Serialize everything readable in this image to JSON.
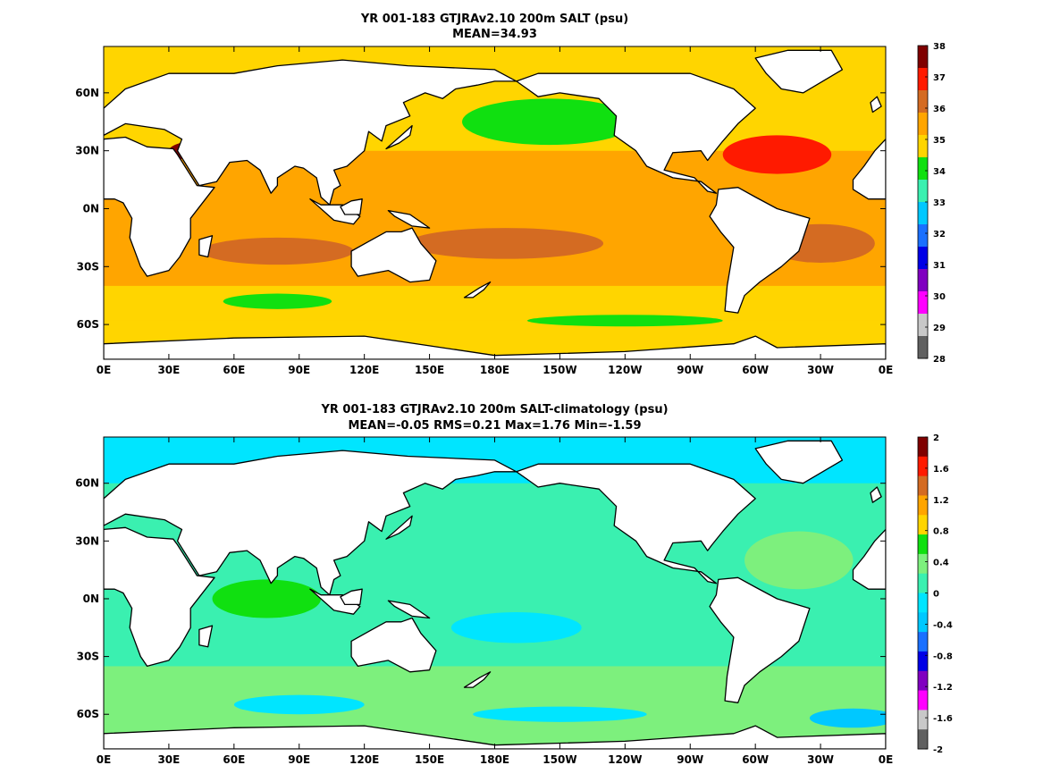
{
  "chart_data": [
    {
      "type": "heatmap",
      "title": "YR 001-183 GTJRAv2.10 200m SALT (psu)",
      "subtitle": "MEAN=34.93",
      "xticks": [
        "0E",
        "30E",
        "60E",
        "90E",
        "120E",
        "150E",
        "180E",
        "150W",
        "120W",
        "90W",
        "60W",
        "30W",
        "0E"
      ],
      "yticks": [
        "60N",
        "30N",
        "0N",
        "30S",
        "60S"
      ],
      "xlim_lon": [
        0,
        360
      ],
      "ylim_lat": [
        -78,
        84
      ],
      "colorbar": {
        "ticks": [
          "38",
          "37",
          "36",
          "35",
          "34",
          "33",
          "32",
          "31",
          "30",
          "29",
          "28"
        ],
        "colors": [
          "#7f0000",
          "#ff1a00",
          "#d46b22",
          "#ffa500",
          "#ffd500",
          "#10e010",
          "#3af0b0",
          "#00c8ff",
          "#1a70ff",
          "#0000e6",
          "#8000c0",
          "#ff00ff",
          "#c8c8c8",
          "#606060"
        ]
      },
      "fields": {
        "background": "#ffd500",
        "bands": [
          {
            "lat": [
              -78,
              -58
            ],
            "color": "#ffd500"
          },
          {
            "lat": [
              -58,
              -40
            ],
            "color": "#ffd500"
          },
          {
            "lat": [
              -40,
              30
            ],
            "color": "#ffa500"
          },
          {
            "lat": [
              30,
              62
            ],
            "color": "#ffd500"
          },
          {
            "lat": [
              62,
              84
            ],
            "color": "#ffd500"
          }
        ],
        "blobs": [
          {
            "lon": 185,
            "lat": -18,
            "rx": 45,
            "ry": 8,
            "color": "#d46b22"
          },
          {
            "lon": 80,
            "lat": -22,
            "rx": 35,
            "ry": 7,
            "color": "#d46b22"
          },
          {
            "lon": 330,
            "lat": -18,
            "rx": 25,
            "ry": 10,
            "color": "#d46b22"
          },
          {
            "lon": 310,
            "lat": 28,
            "rx": 25,
            "ry": 10,
            "color": "#ff1a00"
          },
          {
            "lon": 205,
            "lat": 45,
            "rx": 40,
            "ry": 12,
            "color": "#10e010"
          },
          {
            "lon": 80,
            "lat": -48,
            "rx": 25,
            "ry": 4,
            "color": "#10e010"
          },
          {
            "lon": 240,
            "lat": -58,
            "rx": 45,
            "ry": 3,
            "color": "#10e010"
          },
          {
            "lon": 50,
            "lat": 30,
            "rx": 20,
            "ry": 6,
            "color": "#7f0000"
          }
        ]
      }
    },
    {
      "type": "heatmap",
      "title": "YR 001-183 GTJRAv2.10 200m SALT-climatology (psu)",
      "subtitle": "MEAN=-0.05   RMS=0.21   Max=1.76   Min=-1.59",
      "xticks": [
        "0E",
        "30E",
        "60E",
        "90E",
        "120E",
        "150E",
        "180E",
        "150W",
        "120W",
        "90W",
        "60W",
        "30W",
        "0E"
      ],
      "yticks": [
        "60N",
        "30N",
        "0N",
        "30S",
        "60S"
      ],
      "xlim_lon": [
        0,
        360
      ],
      "ylim_lat": [
        -78,
        84
      ],
      "colorbar": {
        "ticks": [
          "2",
          "1.6",
          "1.2",
          "0.8",
          "0.4",
          "0",
          "-0.4",
          "-0.8",
          "-1.2",
          "-1.6",
          "-2"
        ],
        "colors": [
          "#7f0000",
          "#ff1a00",
          "#d46b22",
          "#ffa500",
          "#ffd500",
          "#10e010",
          "#7df07d",
          "#3af0b0",
          "#00e5ff",
          "#00c8ff",
          "#1a70ff",
          "#0000e6",
          "#8000c0",
          "#ff00ff",
          "#c8c8c8",
          "#606060"
        ]
      },
      "fields": {
        "background": "#3af0b0",
        "bands": [
          {
            "lat": [
              -78,
              -35
            ],
            "color": "#7df07d"
          },
          {
            "lat": [
              -35,
              60
            ],
            "color": "#3af0b0"
          },
          {
            "lat": [
              60,
              84
            ],
            "color": "#00e5ff"
          }
        ],
        "blobs": [
          {
            "lon": 190,
            "lat": -15,
            "rx": 30,
            "ry": 8,
            "color": "#00e5ff"
          },
          {
            "lon": 75,
            "lat": 0,
            "rx": 25,
            "ry": 10,
            "color": "#10e010"
          },
          {
            "lon": 320,
            "lat": 20,
            "rx": 25,
            "ry": 15,
            "color": "#7df07d"
          },
          {
            "lon": 90,
            "lat": -55,
            "rx": 30,
            "ry": 5,
            "color": "#00e5ff"
          },
          {
            "lon": 210,
            "lat": -60,
            "rx": 40,
            "ry": 4,
            "color": "#00e5ff"
          },
          {
            "lon": 345,
            "lat": -62,
            "rx": 20,
            "ry": 5,
            "color": "#00c8ff"
          }
        ]
      }
    }
  ]
}
